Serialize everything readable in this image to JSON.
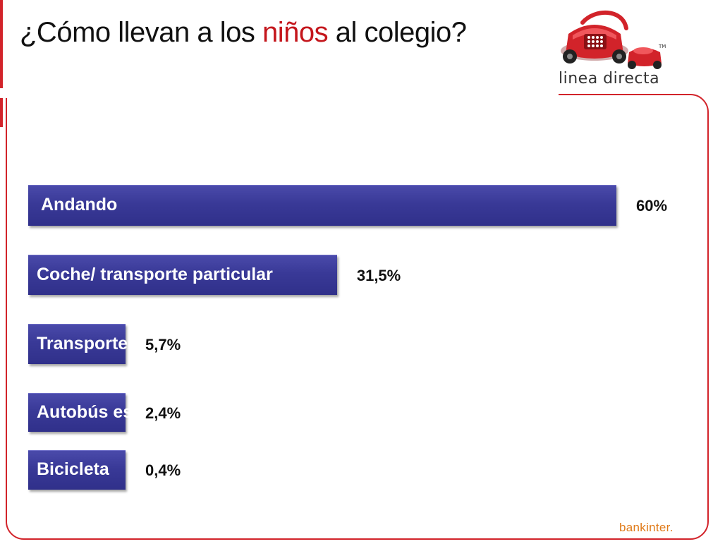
{
  "header": {
    "title_before": "¿Cómo llevan a los ",
    "title_highlight": "niños",
    "title_after": " al colegio?"
  },
  "logo": {
    "text": "linea directa",
    "icon": "red-telephone-on-wheels-icon"
  },
  "footer": {
    "brand": "bankinter."
  },
  "colors": {
    "accent": "#d2232a",
    "bar": "#393997",
    "footer_brand": "#e07b1a"
  },
  "chart_data": {
    "type": "bar",
    "orientation": "horizontal",
    "categories": [
      "Andando",
      "Coche/ transporte particular",
      "Transporte público",
      "Autobús escolar",
      "Bicicleta"
    ],
    "values": [
      60,
      31.5,
      5.7,
      2.4,
      0.4
    ],
    "value_labels": [
      "60%",
      "31,5%",
      "5,7%",
      "2,4%",
      "0,4%"
    ],
    "title": "¿Cómo llevan a los niños al colegio?",
    "xlabel": "",
    "ylabel": "",
    "legend": "none",
    "grid": false
  }
}
